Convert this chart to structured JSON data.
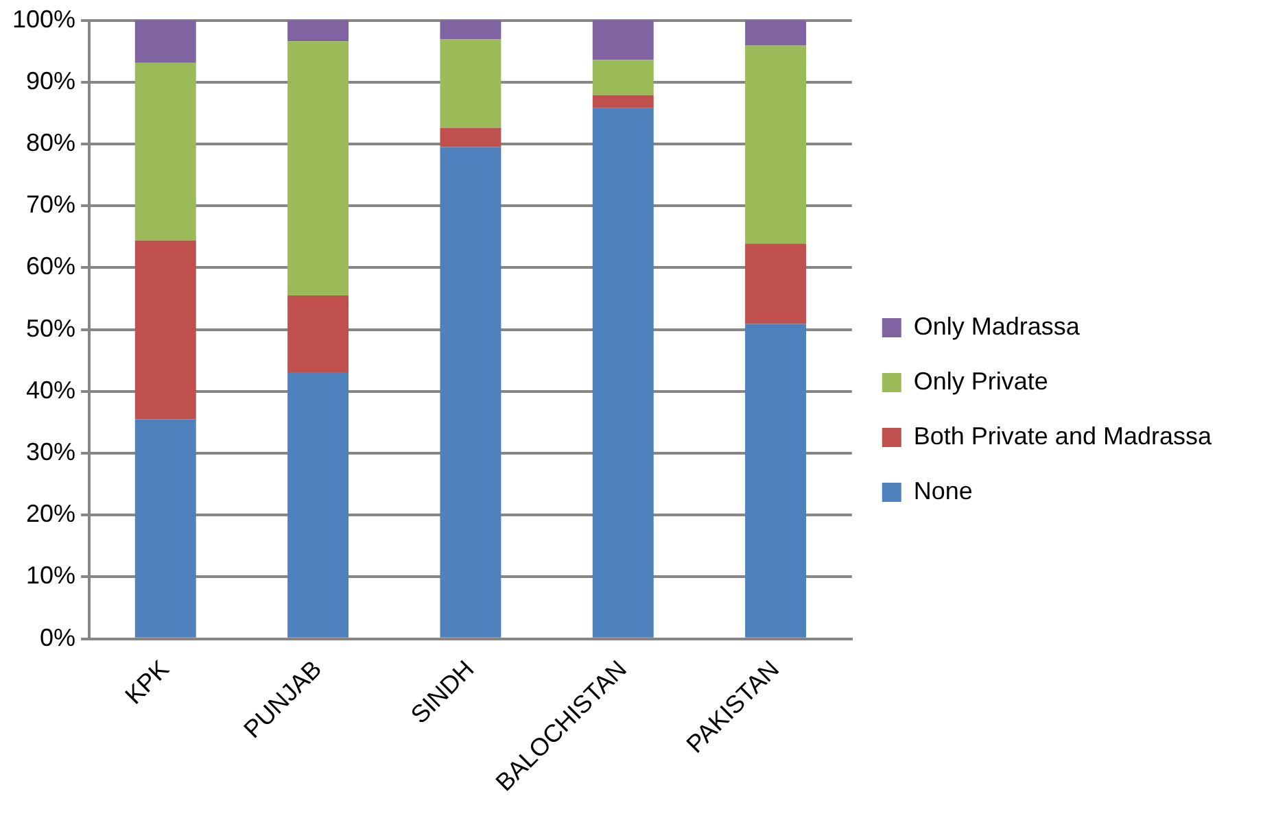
{
  "chart_data": {
    "type": "bar",
    "stacked": true,
    "categories": [
      "KPK",
      "PUNJAB",
      "SINDH",
      "BALOCHISTAN",
      "PAKISTAN"
    ],
    "series": [
      {
        "name": "None",
        "color": "#4f81bd",
        "values": [
          35.5,
          43.1,
          79.5,
          85.8,
          50.9
        ]
      },
      {
        "name": "Both Private and Madrassa",
        "color": "#c0504d",
        "values": [
          28.9,
          12.4,
          3.1,
          2.1,
          13.0
        ]
      },
      {
        "name": "Only Private",
        "color": "#9bbb59",
        "values": [
          28.7,
          41.1,
          14.3,
          5.7,
          32.0
        ]
      },
      {
        "name": "Only Madrassa",
        "color": "#8064a2",
        "values": [
          6.9,
          3.4,
          3.1,
          6.4,
          4.1
        ]
      }
    ],
    "ylim": [
      0,
      100
    ],
    "yticks": [
      {
        "value": 0,
        "label": "0%"
      },
      {
        "value": 10,
        "label": "10%"
      },
      {
        "value": 20,
        "label": "20%"
      },
      {
        "value": 30,
        "label": "30%"
      },
      {
        "value": 40,
        "label": "40%"
      },
      {
        "value": 50,
        "label": "50%"
      },
      {
        "value": 60,
        "label": "60%"
      },
      {
        "value": 70,
        "label": "70%"
      },
      {
        "value": 80,
        "label": "80%"
      },
      {
        "value": 90,
        "label": "90%"
      },
      {
        "value": 100,
        "label": "100%"
      }
    ],
    "grid": "y",
    "legend": "right"
  }
}
